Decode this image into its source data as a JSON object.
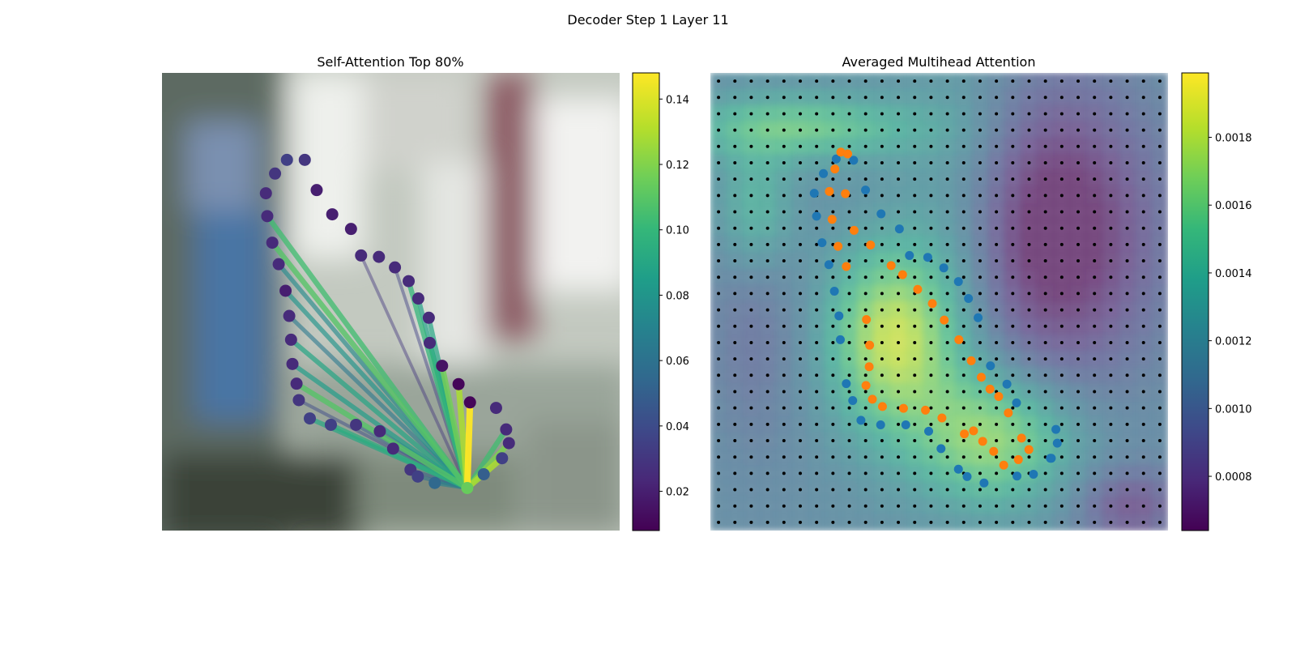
{
  "figure": {
    "suptitle": "Decoder Step 1 Layer 11"
  },
  "colors": {
    "viridis": [
      "#440154",
      "#482878",
      "#3e4989",
      "#31688e",
      "#26828e",
      "#1f9e89",
      "#35b779",
      "#6ece58",
      "#b5de2b",
      "#fde725"
    ],
    "background_left": [
      "#5e6a5a",
      "#8a9a88",
      "#c9d0c4",
      "#e8ebe4"
    ],
    "blue_points": "#1f77b4",
    "orange_points": "#ff7f0e",
    "grid_dots": "#000000"
  },
  "chart_data": [
    {
      "type": "scatter",
      "panel": "left",
      "title": "Self-Attention Top 80%",
      "axes_visible": false,
      "colorbar": {
        "min": 0.008,
        "max": 0.148,
        "ticks": [
          0.02,
          0.04,
          0.06,
          0.08,
          0.1,
          0.12,
          0.14
        ],
        "tick_labels": [
          "0.02",
          "0.04",
          "0.06",
          "0.08",
          "0.10",
          "0.12",
          "0.14"
        ],
        "colormap": "viridis"
      },
      "query_point": {
        "x": 0.667,
        "y": 0.907,
        "value": 0.115
      },
      "points": [
        {
          "x": 0.273,
          "y": 0.19,
          "value": 0.035
        },
        {
          "x": 0.312,
          "y": 0.19,
          "value": 0.03
        },
        {
          "x": 0.247,
          "y": 0.22,
          "value": 0.03
        },
        {
          "x": 0.227,
          "y": 0.263,
          "value": 0.025
        },
        {
          "x": 0.338,
          "y": 0.256,
          "value": 0.02
        },
        {
          "x": 0.23,
          "y": 0.313,
          "value": 0.025
        },
        {
          "x": 0.372,
          "y": 0.309,
          "value": 0.02
        },
        {
          "x": 0.413,
          "y": 0.341,
          "value": 0.02
        },
        {
          "x": 0.241,
          "y": 0.371,
          "value": 0.025
        },
        {
          "x": 0.435,
          "y": 0.399,
          "value": 0.025
        },
        {
          "x": 0.474,
          "y": 0.402,
          "value": 0.025
        },
        {
          "x": 0.255,
          "y": 0.418,
          "value": 0.025
        },
        {
          "x": 0.509,
          "y": 0.425,
          "value": 0.025
        },
        {
          "x": 0.539,
          "y": 0.455,
          "value": 0.025
        },
        {
          "x": 0.27,
          "y": 0.476,
          "value": 0.02
        },
        {
          "x": 0.56,
          "y": 0.493,
          "value": 0.025
        },
        {
          "x": 0.278,
          "y": 0.531,
          "value": 0.025
        },
        {
          "x": 0.583,
          "y": 0.535,
          "value": 0.025
        },
        {
          "x": 0.282,
          "y": 0.583,
          "value": 0.025
        },
        {
          "x": 0.585,
          "y": 0.59,
          "value": 0.025
        },
        {
          "x": 0.285,
          "y": 0.636,
          "value": 0.025
        },
        {
          "x": 0.612,
          "y": 0.64,
          "value": 0.015
        },
        {
          "x": 0.294,
          "y": 0.679,
          "value": 0.025
        },
        {
          "x": 0.648,
          "y": 0.68,
          "value": 0.01
        },
        {
          "x": 0.299,
          "y": 0.715,
          "value": 0.03
        },
        {
          "x": 0.673,
          "y": 0.72,
          "value": 0.01
        },
        {
          "x": 0.323,
          "y": 0.755,
          "value": 0.035
        },
        {
          "x": 0.73,
          "y": 0.732,
          "value": 0.025
        },
        {
          "x": 0.369,
          "y": 0.769,
          "value": 0.035
        },
        {
          "x": 0.424,
          "y": 0.769,
          "value": 0.03
        },
        {
          "x": 0.476,
          "y": 0.783,
          "value": 0.025
        },
        {
          "x": 0.752,
          "y": 0.779,
          "value": 0.025
        },
        {
          "x": 0.505,
          "y": 0.821,
          "value": 0.025
        },
        {
          "x": 0.758,
          "y": 0.809,
          "value": 0.025
        },
        {
          "x": 0.743,
          "y": 0.842,
          "value": 0.035
        },
        {
          "x": 0.543,
          "y": 0.867,
          "value": 0.03
        },
        {
          "x": 0.559,
          "y": 0.882,
          "value": 0.035
        },
        {
          "x": 0.703,
          "y": 0.877,
          "value": 0.05
        },
        {
          "x": 0.596,
          "y": 0.896,
          "value": 0.055
        }
      ],
      "edges": [
        {
          "to": 25,
          "value": 0.148
        },
        {
          "to": 23,
          "value": 0.13
        },
        {
          "to": 21,
          "value": 0.118
        },
        {
          "to": 19,
          "value": 0.095
        },
        {
          "to": 17,
          "value": 0.09
        },
        {
          "to": 15,
          "value": 0.088
        },
        {
          "to": 26,
          "value": 0.092
        },
        {
          "to": 28,
          "value": 0.095
        },
        {
          "to": 31,
          "value": 0.105
        },
        {
          "to": 33,
          "value": 0.12
        },
        {
          "to": 34,
          "value": 0.13
        },
        {
          "to": 37,
          "value": 0.085
        },
        {
          "to": 38,
          "value": 0.07
        },
        {
          "to": 36,
          "value": 0.06
        },
        {
          "to": 35,
          "value": 0.05
        },
        {
          "to": 30,
          "value": 0.06
        },
        {
          "to": 29,
          "value": 0.05
        },
        {
          "to": 24,
          "value": 0.04
        },
        {
          "to": 22,
          "value": 0.11
        },
        {
          "to": 20,
          "value": 0.085
        },
        {
          "to": 18,
          "value": 0.09
        },
        {
          "to": 16,
          "value": 0.065
        },
        {
          "to": 14,
          "value": 0.08
        },
        {
          "to": 11,
          "value": 0.075
        },
        {
          "to": 8,
          "value": 0.11
        },
        {
          "to": 5,
          "value": 0.105
        },
        {
          "to": 12,
          "value": 0.035
        },
        {
          "to": 13,
          "value": 0.1
        },
        {
          "to": 9,
          "value": 0.03
        }
      ]
    },
    {
      "type": "heatmap",
      "panel": "right",
      "title": "Averaged Multihead Attention",
      "axes_visible": false,
      "grid_size": 28,
      "colorbar": {
        "min": 0.00064,
        "max": 0.00199,
        "ticks": [
          0.0008,
          0.001,
          0.0012,
          0.0014,
          0.0016,
          0.0018
        ],
        "tick_labels": [
          "0.0008",
          "0.0010",
          "0.0012",
          "0.0014",
          "0.0016",
          "0.0018"
        ],
        "colormap": "viridis"
      },
      "blue_points": [
        [
          0.275,
          0.188
        ],
        [
          0.313,
          0.191
        ],
        [
          0.247,
          0.22
        ],
        [
          0.227,
          0.263
        ],
        [
          0.339,
          0.256
        ],
        [
          0.232,
          0.313
        ],
        [
          0.373,
          0.308
        ],
        [
          0.413,
          0.341
        ],
        [
          0.244,
          0.371
        ],
        [
          0.435,
          0.399
        ],
        [
          0.475,
          0.403
        ],
        [
          0.259,
          0.419
        ],
        [
          0.51,
          0.426
        ],
        [
          0.542,
          0.456
        ],
        [
          0.271,
          0.477
        ],
        [
          0.564,
          0.493
        ],
        [
          0.281,
          0.531
        ],
        [
          0.585,
          0.535
        ],
        [
          0.284,
          0.583
        ],
        [
          0.612,
          0.64
        ],
        [
          0.297,
          0.679
        ],
        [
          0.648,
          0.68
        ],
        [
          0.311,
          0.716
        ],
        [
          0.669,
          0.721
        ],
        [
          0.329,
          0.759
        ],
        [
          0.372,
          0.769
        ],
        [
          0.427,
          0.769
        ],
        [
          0.477,
          0.783
        ],
        [
          0.755,
          0.779
        ],
        [
          0.504,
          0.821
        ],
        [
          0.758,
          0.809
        ],
        [
          0.745,
          0.842
        ],
        [
          0.542,
          0.866
        ],
        [
          0.561,
          0.882
        ],
        [
          0.598,
          0.896
        ],
        [
          0.67,
          0.881
        ],
        [
          0.706,
          0.877
        ],
        [
          0.743,
          0.842
        ]
      ],
      "orange_points": [
        [
          0.285,
          0.173
        ],
        [
          0.3,
          0.177
        ],
        [
          0.272,
          0.21
        ],
        [
          0.26,
          0.259
        ],
        [
          0.295,
          0.264
        ],
        [
          0.266,
          0.32
        ],
        [
          0.314,
          0.344
        ],
        [
          0.279,
          0.379
        ],
        [
          0.35,
          0.376
        ],
        [
          0.297,
          0.423
        ],
        [
          0.395,
          0.421
        ],
        [
          0.42,
          0.441
        ],
        [
          0.453,
          0.473
        ],
        [
          0.485,
          0.504
        ],
        [
          0.511,
          0.54
        ],
        [
          0.341,
          0.539
        ],
        [
          0.543,
          0.583
        ],
        [
          0.348,
          0.595
        ],
        [
          0.57,
          0.629
        ],
        [
          0.347,
          0.642
        ],
        [
          0.34,
          0.683
        ],
        [
          0.592,
          0.665
        ],
        [
          0.354,
          0.713
        ],
        [
          0.611,
          0.691
        ],
        [
          0.376,
          0.729
        ],
        [
          0.63,
          0.707
        ],
        [
          0.422,
          0.733
        ],
        [
          0.47,
          0.737
        ],
        [
          0.506,
          0.754
        ],
        [
          0.651,
          0.743
        ],
        [
          0.575,
          0.782
        ],
        [
          0.555,
          0.789
        ],
        [
          0.595,
          0.805
        ],
        [
          0.619,
          0.827
        ],
        [
          0.68,
          0.798
        ],
        [
          0.696,
          0.823
        ],
        [
          0.673,
          0.845
        ],
        [
          0.641,
          0.857
        ]
      ]
    }
  ]
}
